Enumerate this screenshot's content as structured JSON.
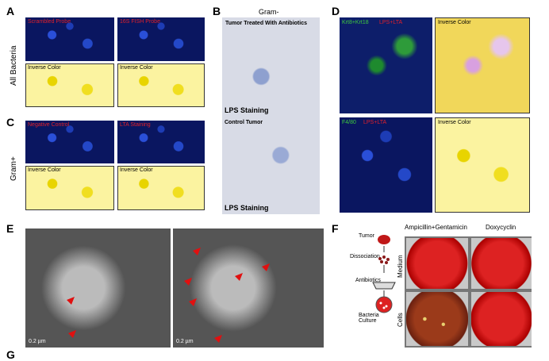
{
  "A": {
    "letter": "A",
    "side_label": "All Bacteria",
    "labels": [
      "Scrambled Probe",
      "16S FISH Probe",
      "Inverse Color",
      "Inverse Color"
    ]
  },
  "B": {
    "letter": "B",
    "heading": "Gram-",
    "labels": [
      "Tumor Treated With Antibiotics",
      "LPS Staining",
      "Control Tumor",
      "LPS Staining"
    ]
  },
  "C": {
    "letter": "C",
    "side_label": "Gram+",
    "labels": [
      "Negative Control",
      "LTA Staining",
      "Inverse Color",
      "Inverse Color"
    ]
  },
  "D": {
    "letter": "D",
    "labels": [
      [
        "Krt8+Krt18",
        "LPS+LTA"
      ],
      "Inverse Color",
      [
        "F4/80",
        "LPS+LTA"
      ],
      "Inverse Color"
    ]
  },
  "E": {
    "letter": "E",
    "scale_bars": [
      "0.2 µm",
      "0.2 µm"
    ]
  },
  "F": {
    "letter": "F",
    "steps": [
      "Tumor",
      "Dissociation",
      "Antibiotics",
      "Bacteria Culture"
    ],
    "columns": [
      "Ampicillin+Gentamicin",
      "Doxycyclin"
    ],
    "rows": [
      "Medium",
      "Cells"
    ]
  },
  "G": {
    "letter": "G"
  }
}
